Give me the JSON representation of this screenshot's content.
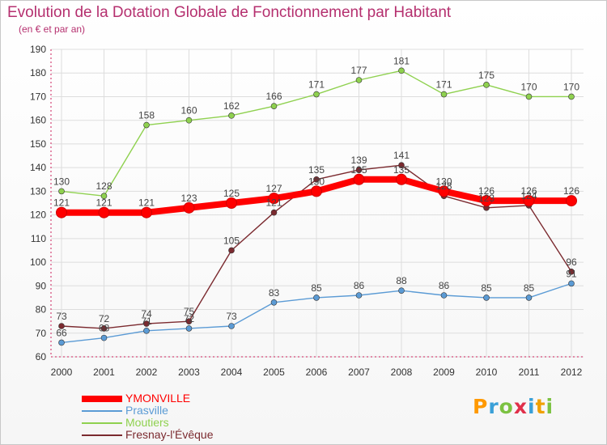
{
  "title": "Evolution de la Dotation Globale de Fonctionnement par Habitant",
  "subtitle": "(en € et par an)",
  "logo_text": "Proxiti",
  "colors": {
    "title": "#b5306f",
    "axis": "#cc1f5a",
    "grid": "#dddddd"
  },
  "chart_data": {
    "type": "line",
    "title": "Evolution de la Dotation Globale de Fonctionnement par Habitant",
    "subtitle": "(en € et par an)",
    "x": [
      "2000",
      "2001",
      "2002",
      "2003",
      "2004",
      "2005",
      "2006",
      "2007",
      "2008",
      "2009",
      "2010",
      "2011",
      "2012"
    ],
    "ylim": [
      60,
      190
    ],
    "yticks": [
      60,
      70,
      80,
      90,
      100,
      110,
      120,
      130,
      140,
      150,
      160,
      170,
      180,
      190
    ],
    "grid": true,
    "legend_position": "bottom-left",
    "series": [
      {
        "name": "YMONVILLE",
        "color": "#ff0000",
        "values": [
          121,
          121,
          121,
          123,
          125,
          127,
          130,
          135,
          135,
          130,
          126,
          126,
          126
        ]
      },
      {
        "name": "Prasville",
        "color": "#5b9bd5",
        "values": [
          66,
          68,
          71,
          72,
          73,
          83,
          85,
          86,
          88,
          86,
          85,
          85,
          91
        ]
      },
      {
        "name": "Moutiers",
        "color": "#8fd14f",
        "values": [
          130,
          128,
          158,
          160,
          162,
          166,
          171,
          177,
          181,
          171,
          175,
          170,
          170
        ]
      },
      {
        "name": "Fresnay-l'Évêque",
        "color": "#7b2a2f",
        "values": [
          73,
          72,
          74,
          75,
          105,
          121,
          135,
          139,
          141,
          128,
          123,
          124,
          96
        ]
      }
    ]
  }
}
